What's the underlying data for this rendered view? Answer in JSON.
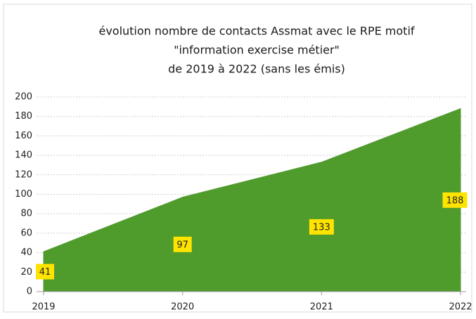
{
  "chart_data": {
    "type": "area",
    "title": [
      "évolution nombre de contacts Assmat avec le RPE motif",
      "\"information exercise métier\"",
      "de 2019 à 2022 (sans les émis)"
    ],
    "categories": [
      "2019",
      "2020",
      "2021",
      "2022"
    ],
    "values": [
      41,
      97,
      133,
      188
    ],
    "color": "#4f9b2c",
    "ylim": [
      0,
      200
    ],
    "yticks": [
      0,
      20,
      40,
      60,
      80,
      100,
      120,
      140,
      160,
      180,
      200
    ],
    "grid": true
  }
}
